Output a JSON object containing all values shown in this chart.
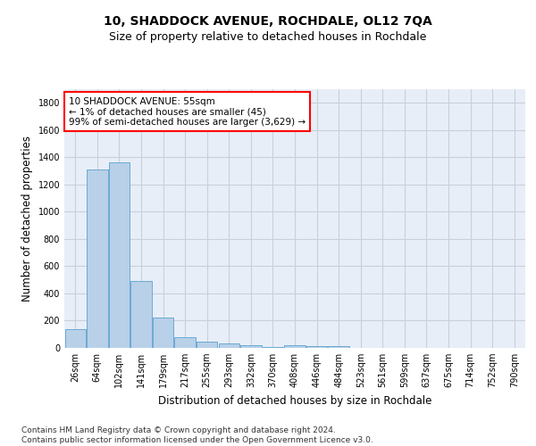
{
  "title": "10, SHADDOCK AVENUE, ROCHDALE, OL12 7QA",
  "subtitle": "Size of property relative to detached houses in Rochdale",
  "xlabel": "Distribution of detached houses by size in Rochdale",
  "ylabel": "Number of detached properties",
  "categories": [
    "26sqm",
    "64sqm",
    "102sqm",
    "141sqm",
    "179sqm",
    "217sqm",
    "255sqm",
    "293sqm",
    "332sqm",
    "370sqm",
    "408sqm",
    "446sqm",
    "484sqm",
    "523sqm",
    "561sqm",
    "599sqm",
    "637sqm",
    "675sqm",
    "714sqm",
    "752sqm",
    "790sqm"
  ],
  "values": [
    140,
    1310,
    1360,
    490,
    225,
    80,
    45,
    30,
    20,
    5,
    20,
    10,
    15,
    0,
    0,
    0,
    0,
    0,
    0,
    0,
    0
  ],
  "bar_color": "#b8d0e8",
  "bar_edge_color": "#6aaad4",
  "annotation_text_line1": "10 SHADDOCK AVENUE: 55sqm",
  "annotation_text_line2": "← 1% of detached houses are smaller (45)",
  "annotation_text_line3": "99% of semi-detached houses are larger (3,629) →",
  "annotation_box_color": "white",
  "annotation_box_edge_color": "red",
  "ylim": [
    0,
    1900
  ],
  "yticks": [
    0,
    200,
    400,
    600,
    800,
    1000,
    1200,
    1400,
    1600,
    1800
  ],
  "grid_color": "#c8d0dc",
  "background_color": "#e8eef8",
  "footnote": "Contains HM Land Registry data © Crown copyright and database right 2024.\nContains public sector information licensed under the Open Government Licence v3.0.",
  "title_fontsize": 10,
  "subtitle_fontsize": 9,
  "xlabel_fontsize": 8.5,
  "ylabel_fontsize": 8.5,
  "tick_fontsize": 7,
  "annotation_fontsize": 7.5,
  "footnote_fontsize": 6.5
}
